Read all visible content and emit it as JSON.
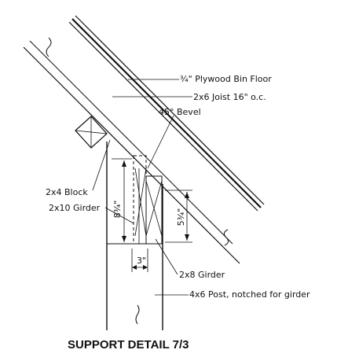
{
  "labels": {
    "plywood": "¾\" Plywood Bin Floor",
    "joist": "2x6 Joist 16\" o.c.",
    "bevel": "45° Bevel",
    "block": "2x4 Block",
    "girder10": "2x10 Girder",
    "girder8": "2x8 Girder",
    "post": "4x6 Post, notched for girder"
  },
  "dimensions": {
    "height_a": "8¾\"",
    "height_b": "5¾\"",
    "width": "3\""
  },
  "caption": "SUPPORT DETAIL 7/3",
  "colors": {
    "ink": "#111111",
    "background": "#ffffff"
  }
}
